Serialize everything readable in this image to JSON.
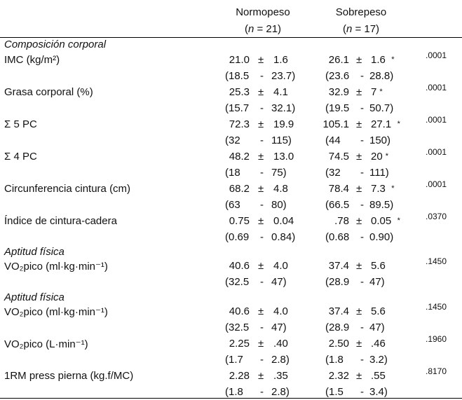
{
  "headers": [
    {
      "name": "Normopeso",
      "n": "(n = 21)",
      "n_prefix": "(",
      "n_italic": "n",
      "n_suffix": " = 21)"
    },
    {
      "name": "Sobrepeso",
      "n": "(n = 17)",
      "n_prefix": "(",
      "n_italic": "n",
      "n_suffix": " = 17)"
    }
  ],
  "sections": [
    {
      "title": "Composición corporal",
      "rows": [
        {
          "label": "IMC (kg/m²)",
          "g1": {
            "mean": "21.0",
            "sd": "1.6",
            "min": "(18.5",
            "max": "23.7)"
          },
          "g2": {
            "mean": "26.1",
            "sd": "1.6",
            "star": "*",
            "min": "(23.6",
            "max": "28.8)"
          },
          "p": ".0001"
        },
        {
          "label": "Grasa corporal (%)",
          "g1": {
            "mean": "25.3",
            "sd": "4.1",
            "min": "(15.7",
            "max": "32.1)"
          },
          "g2": {
            "mean": "32.9",
            "sd": "7",
            "star": "*",
            "min": "(19.5",
            "max": "50.7)"
          },
          "p": ".0001"
        },
        {
          "label": "Σ 5 PC",
          "g1": {
            "mean": "72.3",
            "sd": "19.9",
            "min": "(32",
            "max": "115)"
          },
          "g2": {
            "mean": "105.1",
            "sd": "27.1",
            "star": "*",
            "min": "(44",
            "max": "150)"
          },
          "p": ".0001"
        },
        {
          "label": "Σ 4 PC",
          "g1": {
            "mean": "48.2",
            "sd": "13.0",
            "min": "(18",
            "max": "75)"
          },
          "g2": {
            "mean": "74.5",
            "sd": "20",
            "star": "*",
            "min": "(32",
            "max": "111)"
          },
          "p": ".0001"
        },
        {
          "label": "Circunferencia cintura (cm)",
          "g1": {
            "mean": "68.2",
            "sd": "4.8",
            "min": "(63",
            "max": "80)"
          },
          "g2": {
            "mean": "78.4",
            "sd": "7.3",
            "star": "*",
            "min": "(66.5",
            "max": "89.5)"
          },
          "p": ".0001"
        },
        {
          "label": "Índice de cintura-cadera",
          "g1": {
            "mean": "0.75",
            "sd": "0.04",
            "min": "(0.69",
            "max": "0.84)"
          },
          "g2": {
            "mean": ".78",
            "sd": "0.05",
            "star": "*",
            "min": "(0.68",
            "max": "0.90)"
          },
          "p": ".0370"
        }
      ]
    },
    {
      "title": "Aptitud física",
      "rows": [
        {
          "label": "VO₂pico (ml·kg·min⁻¹)",
          "g1": {
            "mean": "40.6",
            "sd": "4.0",
            "min": "(32.5",
            "max": "47)"
          },
          "g2": {
            "mean": "37.4",
            "sd": "5.6",
            "star": "",
            "min": "(28.9",
            "max": "47)"
          },
          "p": ".1450"
        }
      ]
    },
    {
      "title": "Aptitud física",
      "rows": [
        {
          "label": "VO₂pico (ml·kg·min⁻¹)",
          "g1": {
            "mean": "40.6",
            "sd": "4.0",
            "min": "(32.5",
            "max": "47)"
          },
          "g2": {
            "mean": "37.4",
            "sd": "5.6",
            "star": "",
            "min": "(28.9",
            "max": "47)"
          },
          "p": ".1450"
        },
        {
          "label": "VO₂pico (L·min⁻¹)",
          "g1": {
            "mean": "2.25",
            "sd": ".40",
            "min": "(1.7",
            "max": "2.8)"
          },
          "g2": {
            "mean": "2.50",
            "sd": ".46",
            "star": "",
            "min": "(1.8",
            "max": "3.2)"
          },
          "p": ".1960"
        },
        {
          "label": "1RM press pierna (kg.f/MC)",
          "g1": {
            "mean": "2.28",
            "sd": ".35",
            "min": "(1.8",
            "max": "2.8)"
          },
          "g2": {
            "mean": "2.32",
            "sd": ".55",
            "star": "",
            "min": "(1.5",
            "max": "3.4)"
          },
          "p": ".8170"
        }
      ]
    }
  ],
  "symbols": {
    "pm": "±",
    "dash": "-"
  }
}
